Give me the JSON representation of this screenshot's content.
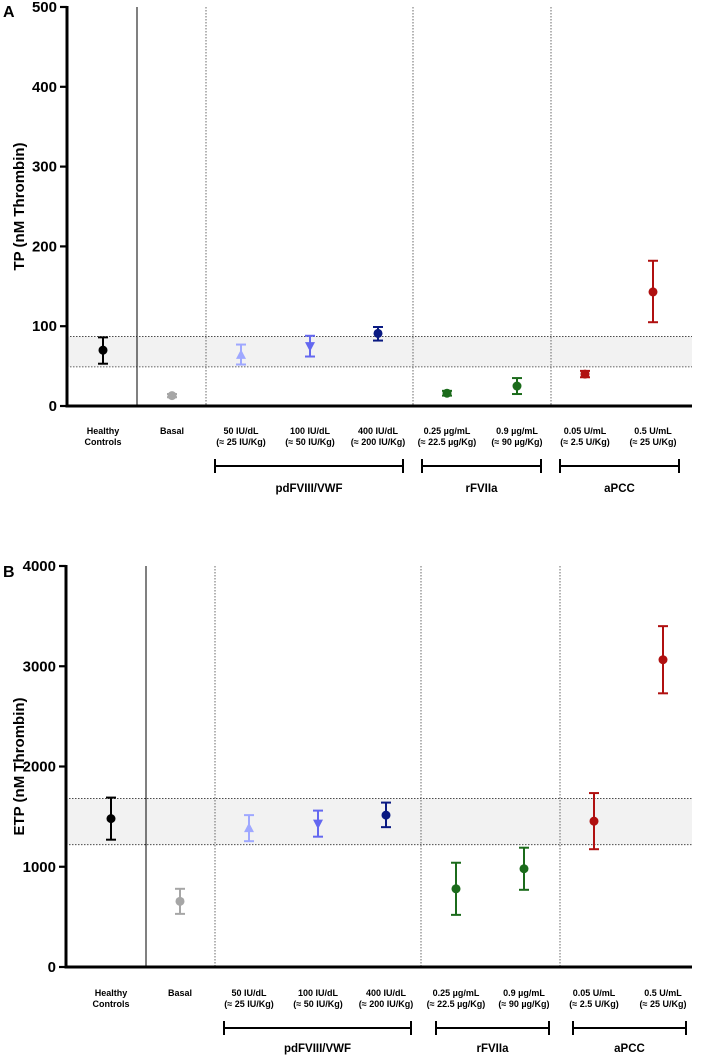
{
  "chart_data": [
    {
      "type": "scatter",
      "panel_label": "A",
      "ylabel": "TP (nM Thrombin)",
      "ylim": [
        0,
        500
      ],
      "yticks": [
        0,
        100,
        200,
        300,
        400,
        500
      ],
      "reference_band": [
        49,
        87
      ],
      "categories": [
        {
          "label_lines": [
            "Healthy",
            "Controls"
          ]
        },
        {
          "label_lines": [
            "Basal"
          ]
        },
        {
          "label_lines": [
            "50 IU/dL",
            "(≈ 25 IU/Kg)"
          ]
        },
        {
          "label_lines": [
            "100 IU/dL",
            "(≈ 50 IU/Kg)"
          ]
        },
        {
          "label_lines": [
            "400 IU/dL",
            "(≈ 200 IU/Kg)"
          ]
        },
        {
          "label_lines": [
            "0.25 µg/mL",
            "(≈ 22.5 µg/Kg)"
          ]
        },
        {
          "label_lines": [
            "0.9 µg/mL",
            "(≈ 90 µg/Kg)"
          ]
        },
        {
          "label_lines": [
            "0.05 U/mL",
            "(≈ 2.5 U/Kg)"
          ]
        },
        {
          "label_lines": [
            "0.5 U/mL",
            "(≈ 25 U/Kg)"
          ]
        }
      ],
      "points": [
        {
          "value": 70,
          "low": 53,
          "high": 86,
          "color": "#000000",
          "marker": "circle"
        },
        {
          "value": 13,
          "low": 11,
          "high": 15,
          "color": "#a6a6a6",
          "marker": "circle"
        },
        {
          "value": 64,
          "low": 52,
          "high": 77,
          "color": "#9fa8ff",
          "marker": "triangle-up"
        },
        {
          "value": 75,
          "low": 62,
          "high": 88,
          "color": "#6468f0",
          "marker": "triangle-down"
        },
        {
          "value": 91,
          "low": 82,
          "high": 99,
          "color": "#0a1a82",
          "marker": "circle"
        },
        {
          "value": 16,
          "low": 13,
          "high": 19,
          "color": "#1b6b1b",
          "marker": "circle"
        },
        {
          "value": 25,
          "low": 15,
          "high": 35,
          "color": "#1b6b1b",
          "marker": "circle"
        },
        {
          "value": 40,
          "low": 36,
          "high": 44,
          "color": "#b01010",
          "marker": "circle"
        },
        {
          "value": 143,
          "low": 105,
          "high": 182,
          "color": "#b01010",
          "marker": "circle"
        }
      ],
      "groups": [
        {
          "label": "pdFVIII/VWF",
          "from": 2,
          "to": 4
        },
        {
          "label": "rFVIIa",
          "from": 5,
          "to": 6
        },
        {
          "label": "aPCC",
          "from": 7,
          "to": 8
        }
      ]
    },
    {
      "type": "scatter",
      "panel_label": "B",
      "ylabel": "ETP (nM Thrombin)",
      "ylim": [
        0,
        4000
      ],
      "yticks": [
        0,
        1000,
        2000,
        3000,
        4000
      ],
      "reference_band": [
        1220,
        1680
      ],
      "categories": [
        {
          "label_lines": [
            "Healthy",
            "Controls"
          ]
        },
        {
          "label_lines": [
            "Basal"
          ]
        },
        {
          "label_lines": [
            "50 IU/dL",
            "(≈ 25 IU/Kg)"
          ]
        },
        {
          "label_lines": [
            "100 IU/dL",
            "(≈ 50 IU/Kg)"
          ]
        },
        {
          "label_lines": [
            "400 IU/dL",
            "(≈ 200 IU/Kg)"
          ]
        },
        {
          "label_lines": [
            "0.25 µg/mL",
            "(≈ 22.5 µg/Kg)"
          ]
        },
        {
          "label_lines": [
            "0.9 µg/mL",
            "(≈ 90 µg/Kg)"
          ]
        },
        {
          "label_lines": [
            "0.05 U/mL",
            "(≈ 2.5 U/Kg)"
          ]
        },
        {
          "label_lines": [
            "0.5 U/mL",
            "(≈ 25 U/Kg)"
          ]
        }
      ],
      "points": [
        {
          "value": 1480,
          "low": 1270,
          "high": 1690,
          "color": "#000000",
          "marker": "circle"
        },
        {
          "value": 655,
          "low": 530,
          "high": 780,
          "color": "#a6a6a6",
          "marker": "circle"
        },
        {
          "value": 1385,
          "low": 1255,
          "high": 1515,
          "color": "#9fa8ff",
          "marker": "triangle-up"
        },
        {
          "value": 1430,
          "low": 1300,
          "high": 1560,
          "color": "#6468f0",
          "marker": "triangle-down"
        },
        {
          "value": 1515,
          "low": 1395,
          "high": 1640,
          "color": "#0a1a82",
          "marker": "circle"
        },
        {
          "value": 780,
          "low": 520,
          "high": 1040,
          "color": "#1b6b1b",
          "marker": "circle"
        },
        {
          "value": 980,
          "low": 770,
          "high": 1190,
          "color": "#1b6b1b",
          "marker": "circle"
        },
        {
          "value": 1455,
          "low": 1175,
          "high": 1735,
          "color": "#b01010",
          "marker": "circle"
        },
        {
          "value": 3065,
          "low": 2730,
          "high": 3400,
          "color": "#b01010",
          "marker": "circle"
        }
      ],
      "groups": [
        {
          "label": "pdFVIII/VWF",
          "from": 2,
          "to": 4
        },
        {
          "label": "rFVIIa",
          "from": 5,
          "to": 6
        },
        {
          "label": "aPCC",
          "from": 7,
          "to": 8
        }
      ]
    }
  ]
}
